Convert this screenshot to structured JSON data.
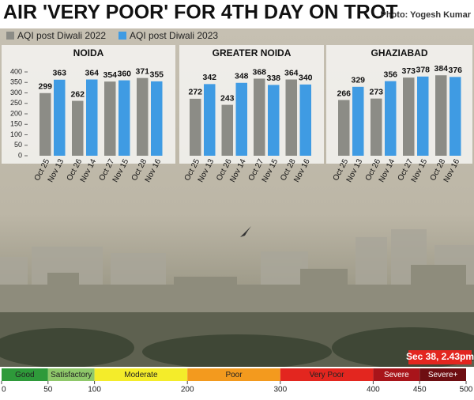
{
  "header": {
    "title": "AIR 'VERY POOR' FOR 4TH DAY ON TROT",
    "credit": "Photo: Yogesh Kumar"
  },
  "chart_data": [
    {
      "type": "bar",
      "title": "NOIDA",
      "ylim": [
        0,
        400
      ],
      "yticks": [
        0,
        50,
        100,
        150,
        200,
        250,
        300,
        350,
        400
      ],
      "series": [
        {
          "name": "AQI post Diwali 2022",
          "color": "#8c8c86",
          "dates": [
            "Oct 25",
            "Oct 26",
            "Oct 27",
            "Oct 28"
          ],
          "values": [
            299,
            262,
            354,
            371
          ]
        },
        {
          "name": "AQI post Diwali 2023",
          "color": "#3f9be3",
          "dates": [
            "Nov 13",
            "Nov 14",
            "Nov 15",
            "Nov 16"
          ],
          "values": [
            363,
            364,
            360,
            355
          ]
        }
      ]
    },
    {
      "type": "bar",
      "title": "GREATER NOIDA",
      "ylim": [
        0,
        400
      ],
      "series": [
        {
          "color": "#8c8c86",
          "dates": [
            "Oct 25",
            "Oct 26",
            "Oct 27",
            "Oct 28"
          ],
          "values": [
            272,
            243,
            368,
            364
          ]
        },
        {
          "color": "#3f9be3",
          "dates": [
            "Nov 13",
            "Nov 14",
            "Nov 15",
            "Nov 16"
          ],
          "values": [
            342,
            348,
            338,
            340
          ]
        }
      ]
    },
    {
      "type": "bar",
      "title": "GHAZIABAD",
      "ylim": [
        0,
        400
      ],
      "series": [
        {
          "color": "#8c8c86",
          "dates": [
            "Oct 25",
            "Oct 26",
            "Oct 27",
            "Oct 28"
          ],
          "values": [
            266,
            273,
            373,
            384
          ]
        },
        {
          "color": "#3f9be3",
          "dates": [
            "Nov 13",
            "Nov 14",
            "Nov 15",
            "Nov 16"
          ],
          "values": [
            329,
            356,
            378,
            376
          ]
        }
      ]
    }
  ],
  "photo_caption": "Sec 38, 2.43pm",
  "aqi_scale": {
    "categories": [
      "Good",
      "Satisfactory",
      "Moderate",
      "Poor",
      "Very Poor",
      "Severe",
      "Severe+"
    ],
    "colors": [
      "#2e9a3a",
      "#8fc86a",
      "#f4ec2a",
      "#f39a1e",
      "#e3261f",
      "#a8141a",
      "#6e0e12"
    ],
    "bounds": [
      0,
      50,
      100,
      200,
      300,
      400,
      450,
      500
    ]
  }
}
